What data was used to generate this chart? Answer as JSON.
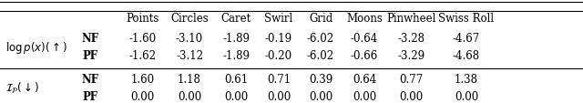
{
  "columns": [
    "",
    "",
    "Points",
    "Circles",
    "Caret",
    "Swirl",
    "Grid",
    "Moons",
    "Pinwheel",
    "Swiss Roll"
  ],
  "row_groups": [
    {
      "label": "$\\log p(x)(\\uparrow)$",
      "rows": [
        {
          "method": "NF",
          "values": [
            "-1.60",
            "-3.10",
            "-1.89",
            "-0.19",
            "-6.02",
            "-0.64",
            "-3.28",
            "-4.67"
          ]
        },
        {
          "method": "PF",
          "values": [
            "-1.62",
            "-3.12",
            "-1.89",
            "-0.20",
            "-6.02",
            "-0.66",
            "-3.29",
            "-4.68"
          ]
        }
      ]
    },
    {
      "label": "$\\mathcal{I}_{\\mathcal{P}}(\\downarrow)$",
      "rows": [
        {
          "method": "NF",
          "values": [
            "1.60",
            "1.18",
            "0.61",
            "0.71",
            "0.39",
            "0.64",
            "0.77",
            "1.38"
          ]
        },
        {
          "method": "PF",
          "values": [
            "0.00",
            "0.00",
            "0.00",
            "0.00",
            "0.00",
            "0.00",
            "0.00",
            "0.00"
          ]
        }
      ]
    }
  ],
  "bg_color": "#ffffff",
  "text_color": "#000000",
  "line_color": "#000000",
  "fontsize": 8.5
}
